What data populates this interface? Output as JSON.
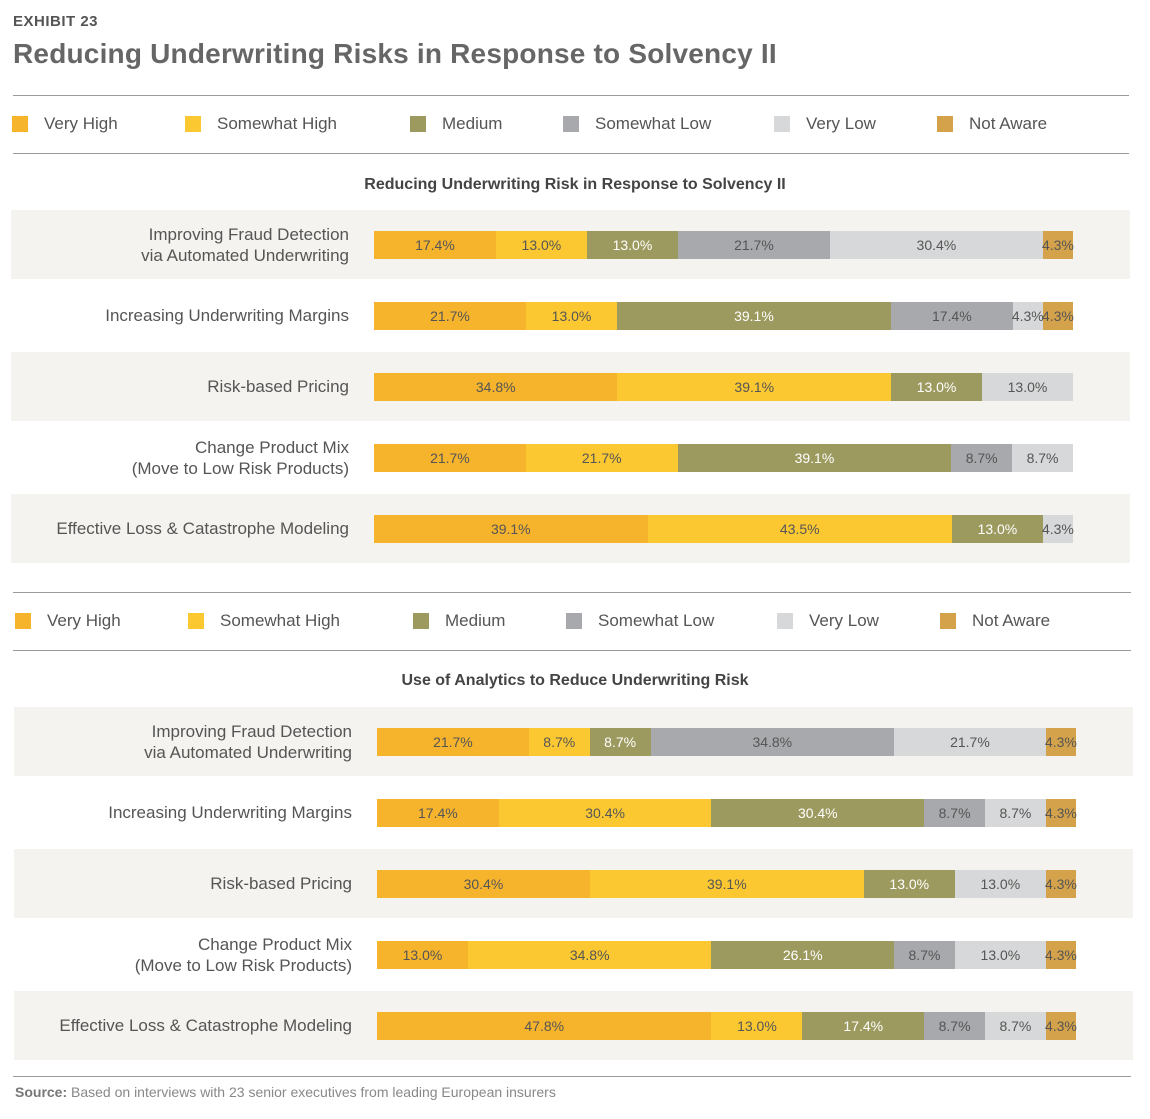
{
  "header": {
    "exhibit": "EXHIBIT 23",
    "title": "Reducing Underwriting Risks in Response to Solvency II"
  },
  "legend": [
    {
      "label": "Very High",
      "color": "#f6b42d"
    },
    {
      "label": "Somewhat High",
      "color": "#fbc832"
    },
    {
      "label": "Medium",
      "color": "#9c9a5e"
    },
    {
      "label": "Somewhat Low",
      "color": "#a7a9ac"
    },
    {
      "label": "Very Low",
      "color": "#d7d8d9"
    },
    {
      "label": "Not Aware",
      "color": "#d4a24a"
    }
  ],
  "chart_data": [
    {
      "type": "bar",
      "orientation": "horizontal",
      "stacked": true,
      "title": "Reducing Underwriting Risk in Response to Solvency II",
      "categories": [
        "Improving Fraud Detection\nvia Automated Underwriting",
        "Increasing Underwriting Margins",
        "Risk-based Pricing",
        "Change Product Mix\n(Move to Low Risk Products)",
        "Effective Loss & Catastrophe Modeling"
      ],
      "series": [
        {
          "name": "Very High",
          "values": [
            17.4,
            21.7,
            34.8,
            21.7,
            39.1
          ]
        },
        {
          "name": "Somewhat High",
          "values": [
            13.0,
            13.0,
            39.1,
            21.7,
            43.5
          ]
        },
        {
          "name": "Medium",
          "values": [
            13.0,
            39.1,
            13.0,
            39.1,
            13.0
          ]
        },
        {
          "name": "Somewhat Low",
          "values": [
            21.7,
            17.4,
            0,
            8.7,
            0
          ]
        },
        {
          "name": "Very Low",
          "values": [
            30.4,
            4.3,
            13.0,
            8.7,
            4.3
          ]
        },
        {
          "name": "Not Aware",
          "values": [
            4.3,
            4.3,
            0,
            0,
            0
          ]
        }
      ],
      "unit": "%"
    },
    {
      "type": "bar",
      "orientation": "horizontal",
      "stacked": true,
      "title": "Use of Analytics to Reduce Underwriting Risk",
      "categories": [
        "Improving Fraud Detection\nvia Automated Underwriting",
        "Increasing Underwriting Margins",
        "Risk-based Pricing",
        "Change Product Mix\n(Move to Low Risk Products)",
        "Effective Loss & Catastrophe Modeling"
      ],
      "series": [
        {
          "name": "Very High",
          "values": [
            21.7,
            17.4,
            30.4,
            13.0,
            47.8
          ]
        },
        {
          "name": "Somewhat High",
          "values": [
            8.7,
            30.4,
            39.1,
            34.8,
            13.0
          ]
        },
        {
          "name": "Medium",
          "values": [
            8.7,
            30.4,
            13.0,
            26.1,
            17.4
          ]
        },
        {
          "name": "Somewhat Low",
          "values": [
            34.8,
            8.7,
            0,
            8.7,
            8.7
          ]
        },
        {
          "name": "Very Low",
          "values": [
            21.7,
            8.7,
            13.0,
            13.0,
            8.7
          ]
        },
        {
          "name": "Not Aware",
          "values": [
            4.3,
            4.3,
            4.3,
            4.3,
            4.3
          ]
        }
      ],
      "unit": "%"
    }
  ],
  "footer": {
    "source_label": "Source:",
    "source_text": "Based on interviews with 23 senior executives from leading European insurers"
  }
}
